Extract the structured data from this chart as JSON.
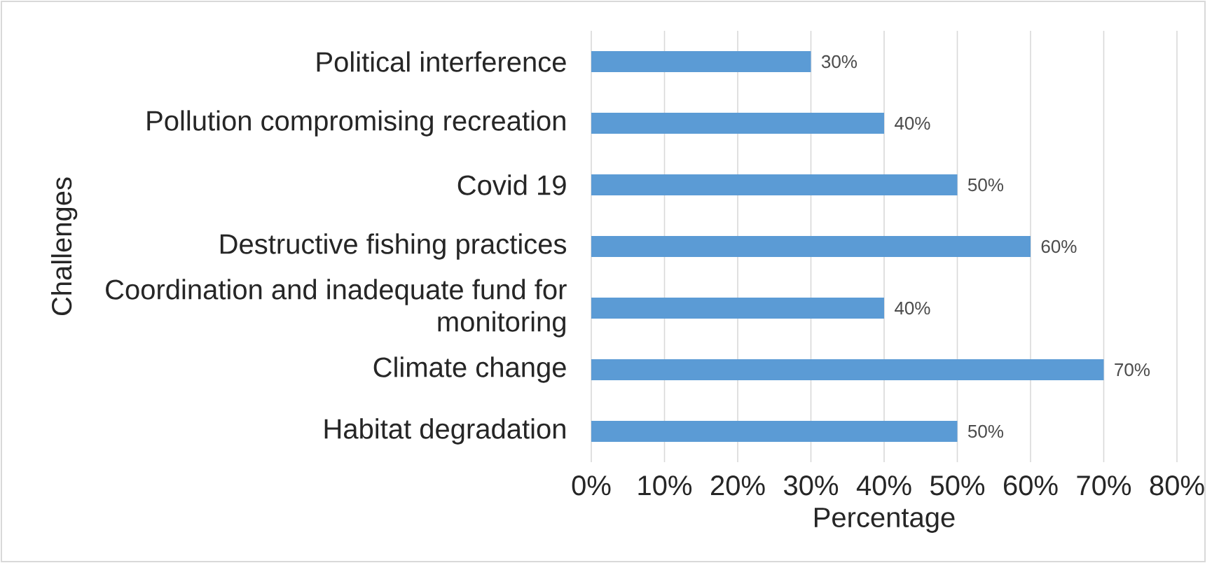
{
  "chart_data": {
    "type": "bar",
    "orientation": "horizontal",
    "ylabel": "Challenges",
    "xlabel": "Percentage",
    "categories": [
      "Political interference",
      "Pollution compromising recreation",
      "Covid 19",
      "Destructive fishing practices",
      "Coordination and inadequate fund for monitoring",
      "Climate change",
      "Habitat degradation"
    ],
    "values": [
      30,
      40,
      50,
      60,
      40,
      70,
      50
    ],
    "value_labels": [
      "30%",
      "40%",
      "50%",
      "60%",
      "40%",
      "70%",
      "50%"
    ],
    "color": "#5b9bd5",
    "xlim": [
      0,
      80
    ],
    "xticks": [
      {
        "value": 0,
        "label": "0%"
      },
      {
        "value": 10,
        "label": "10%"
      },
      {
        "value": 20,
        "label": "20%"
      },
      {
        "value": 30,
        "label": "30%"
      },
      {
        "value": 40,
        "label": "40%"
      },
      {
        "value": 50,
        "label": "50%"
      },
      {
        "value": 60,
        "label": "60%"
      },
      {
        "value": 70,
        "label": "70%"
      },
      {
        "value": 80,
        "label": "80%"
      }
    ],
    "grid": "x"
  }
}
